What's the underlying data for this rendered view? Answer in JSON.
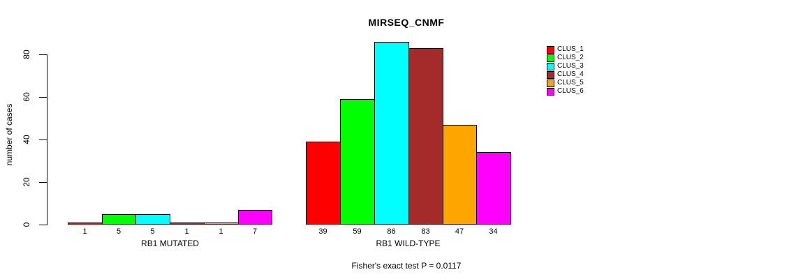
{
  "chart_data": {
    "type": "bar",
    "title": "MIRSEQ_CNMF",
    "ylabel": "number of cases",
    "xlabel": "",
    "caption": "Fisher's exact test P = 0.0117",
    "yticks": [
      0,
      20,
      40,
      60,
      80
    ],
    "ylim": [
      0,
      86
    ],
    "grid": false,
    "legend_position": "right",
    "categories": [
      "CLUS_1",
      "CLUS_2",
      "CLUS_3",
      "CLUS_4",
      "CLUS_5",
      "CLUS_6"
    ],
    "colors": [
      "#FF0000",
      "#00FF00",
      "#00FFFF",
      "#A52A2A",
      "#FFA500",
      "#FF00FF"
    ],
    "groups": [
      {
        "label": "RB1 MUTATED",
        "values": [
          1,
          5,
          5,
          1,
          1,
          7
        ]
      },
      {
        "label": "RB1 WILD-TYPE",
        "values": [
          39,
          59,
          86,
          83,
          47,
          34
        ]
      }
    ],
    "legend": [
      {
        "label": "CLUS_1",
        "color": "#FF0000"
      },
      {
        "label": "CLUS_2",
        "color": "#00FF00"
      },
      {
        "label": "CLUS_3",
        "color": "#00FFFF"
      },
      {
        "label": "CLUS_4",
        "color": "#A52A2A"
      },
      {
        "label": "CLUS_5",
        "color": "#FFA500"
      },
      {
        "label": "CLUS_6",
        "color": "#FF00FF"
      }
    ]
  }
}
